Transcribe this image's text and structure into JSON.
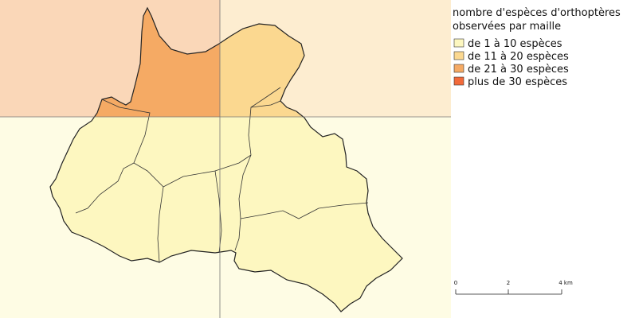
{
  "legend": {
    "title": [
      "nombre d'espèces d'orthoptères",
      "observées par maille"
    ],
    "items": [
      {
        "label": "de 1 à 10 espèces",
        "color": "#fdf7c0"
      },
      {
        "label": "de 11 à 20 espèces",
        "color": "#fbd890"
      },
      {
        "label": "de 21 à 30 espèces",
        "color": "#f5aa64"
      },
      {
        "label": "plus de 30 espèces",
        "color": "#f26a3a"
      }
    ]
  },
  "scale_bar": {
    "labels": [
      "0",
      "2",
      "4 km"
    ]
  }
}
